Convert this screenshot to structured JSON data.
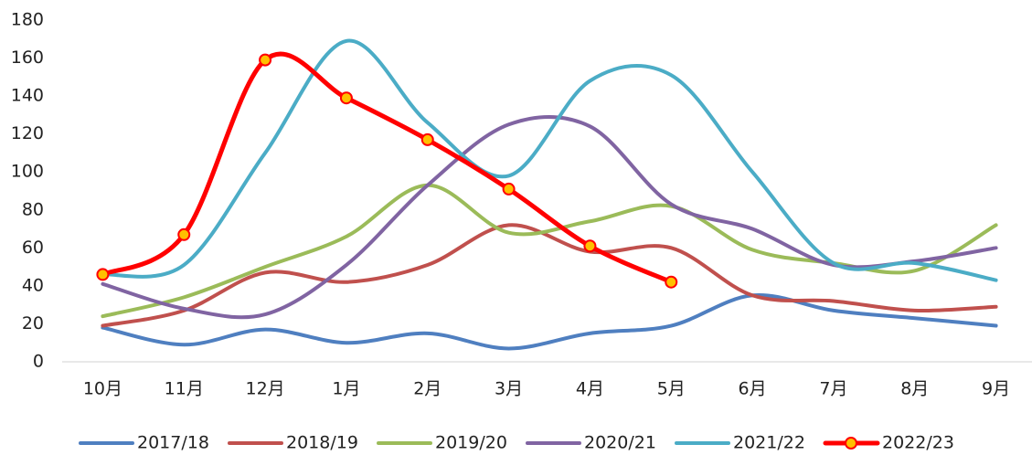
{
  "chart_data": {
    "type": "line",
    "categories": [
      "10月",
      "11月",
      "12月",
      "1月",
      "2月",
      "3月",
      "4月",
      "5月",
      "6月",
      "7月",
      "8月",
      "9月"
    ],
    "series": [
      {
        "name": "2017/18",
        "color": "#4f7fc0",
        "values": [
          18,
          9,
          17,
          10,
          15,
          7,
          15,
          19,
          35,
          27,
          23,
          19
        ]
      },
      {
        "name": "2018/19",
        "color": "#c0504d",
        "values": [
          19,
          27,
          47,
          42,
          51,
          72,
          58,
          60,
          35,
          32,
          27,
          29
        ]
      },
      {
        "name": "2019/20",
        "color": "#9bbb59",
        "values": [
          24,
          34,
          50,
          66,
          93,
          68,
          74,
          82,
          59,
          52,
          48,
          72
        ]
      },
      {
        "name": "2020/21",
        "color": "#8064a2",
        "values": [
          41,
          28,
          25,
          51,
          93,
          125,
          124,
          83,
          70,
          51,
          53,
          60
        ]
      },
      {
        "name": "2021/22",
        "color": "#4bacc6",
        "values": [
          46,
          51,
          110,
          169,
          126,
          98,
          148,
          151,
          100,
          52,
          52,
          43
        ]
      },
      {
        "name": "2022/23",
        "color": "#ff0000",
        "marker": "circle",
        "values": [
          46,
          67,
          159,
          139,
          117,
          91,
          61,
          42,
          null,
          null,
          null,
          null
        ]
      }
    ],
    "ylim": [
      0,
      180
    ],
    "yticks": [
      0,
      20,
      40,
      60,
      80,
      100,
      120,
      140,
      160,
      180
    ],
    "grid": false
  }
}
